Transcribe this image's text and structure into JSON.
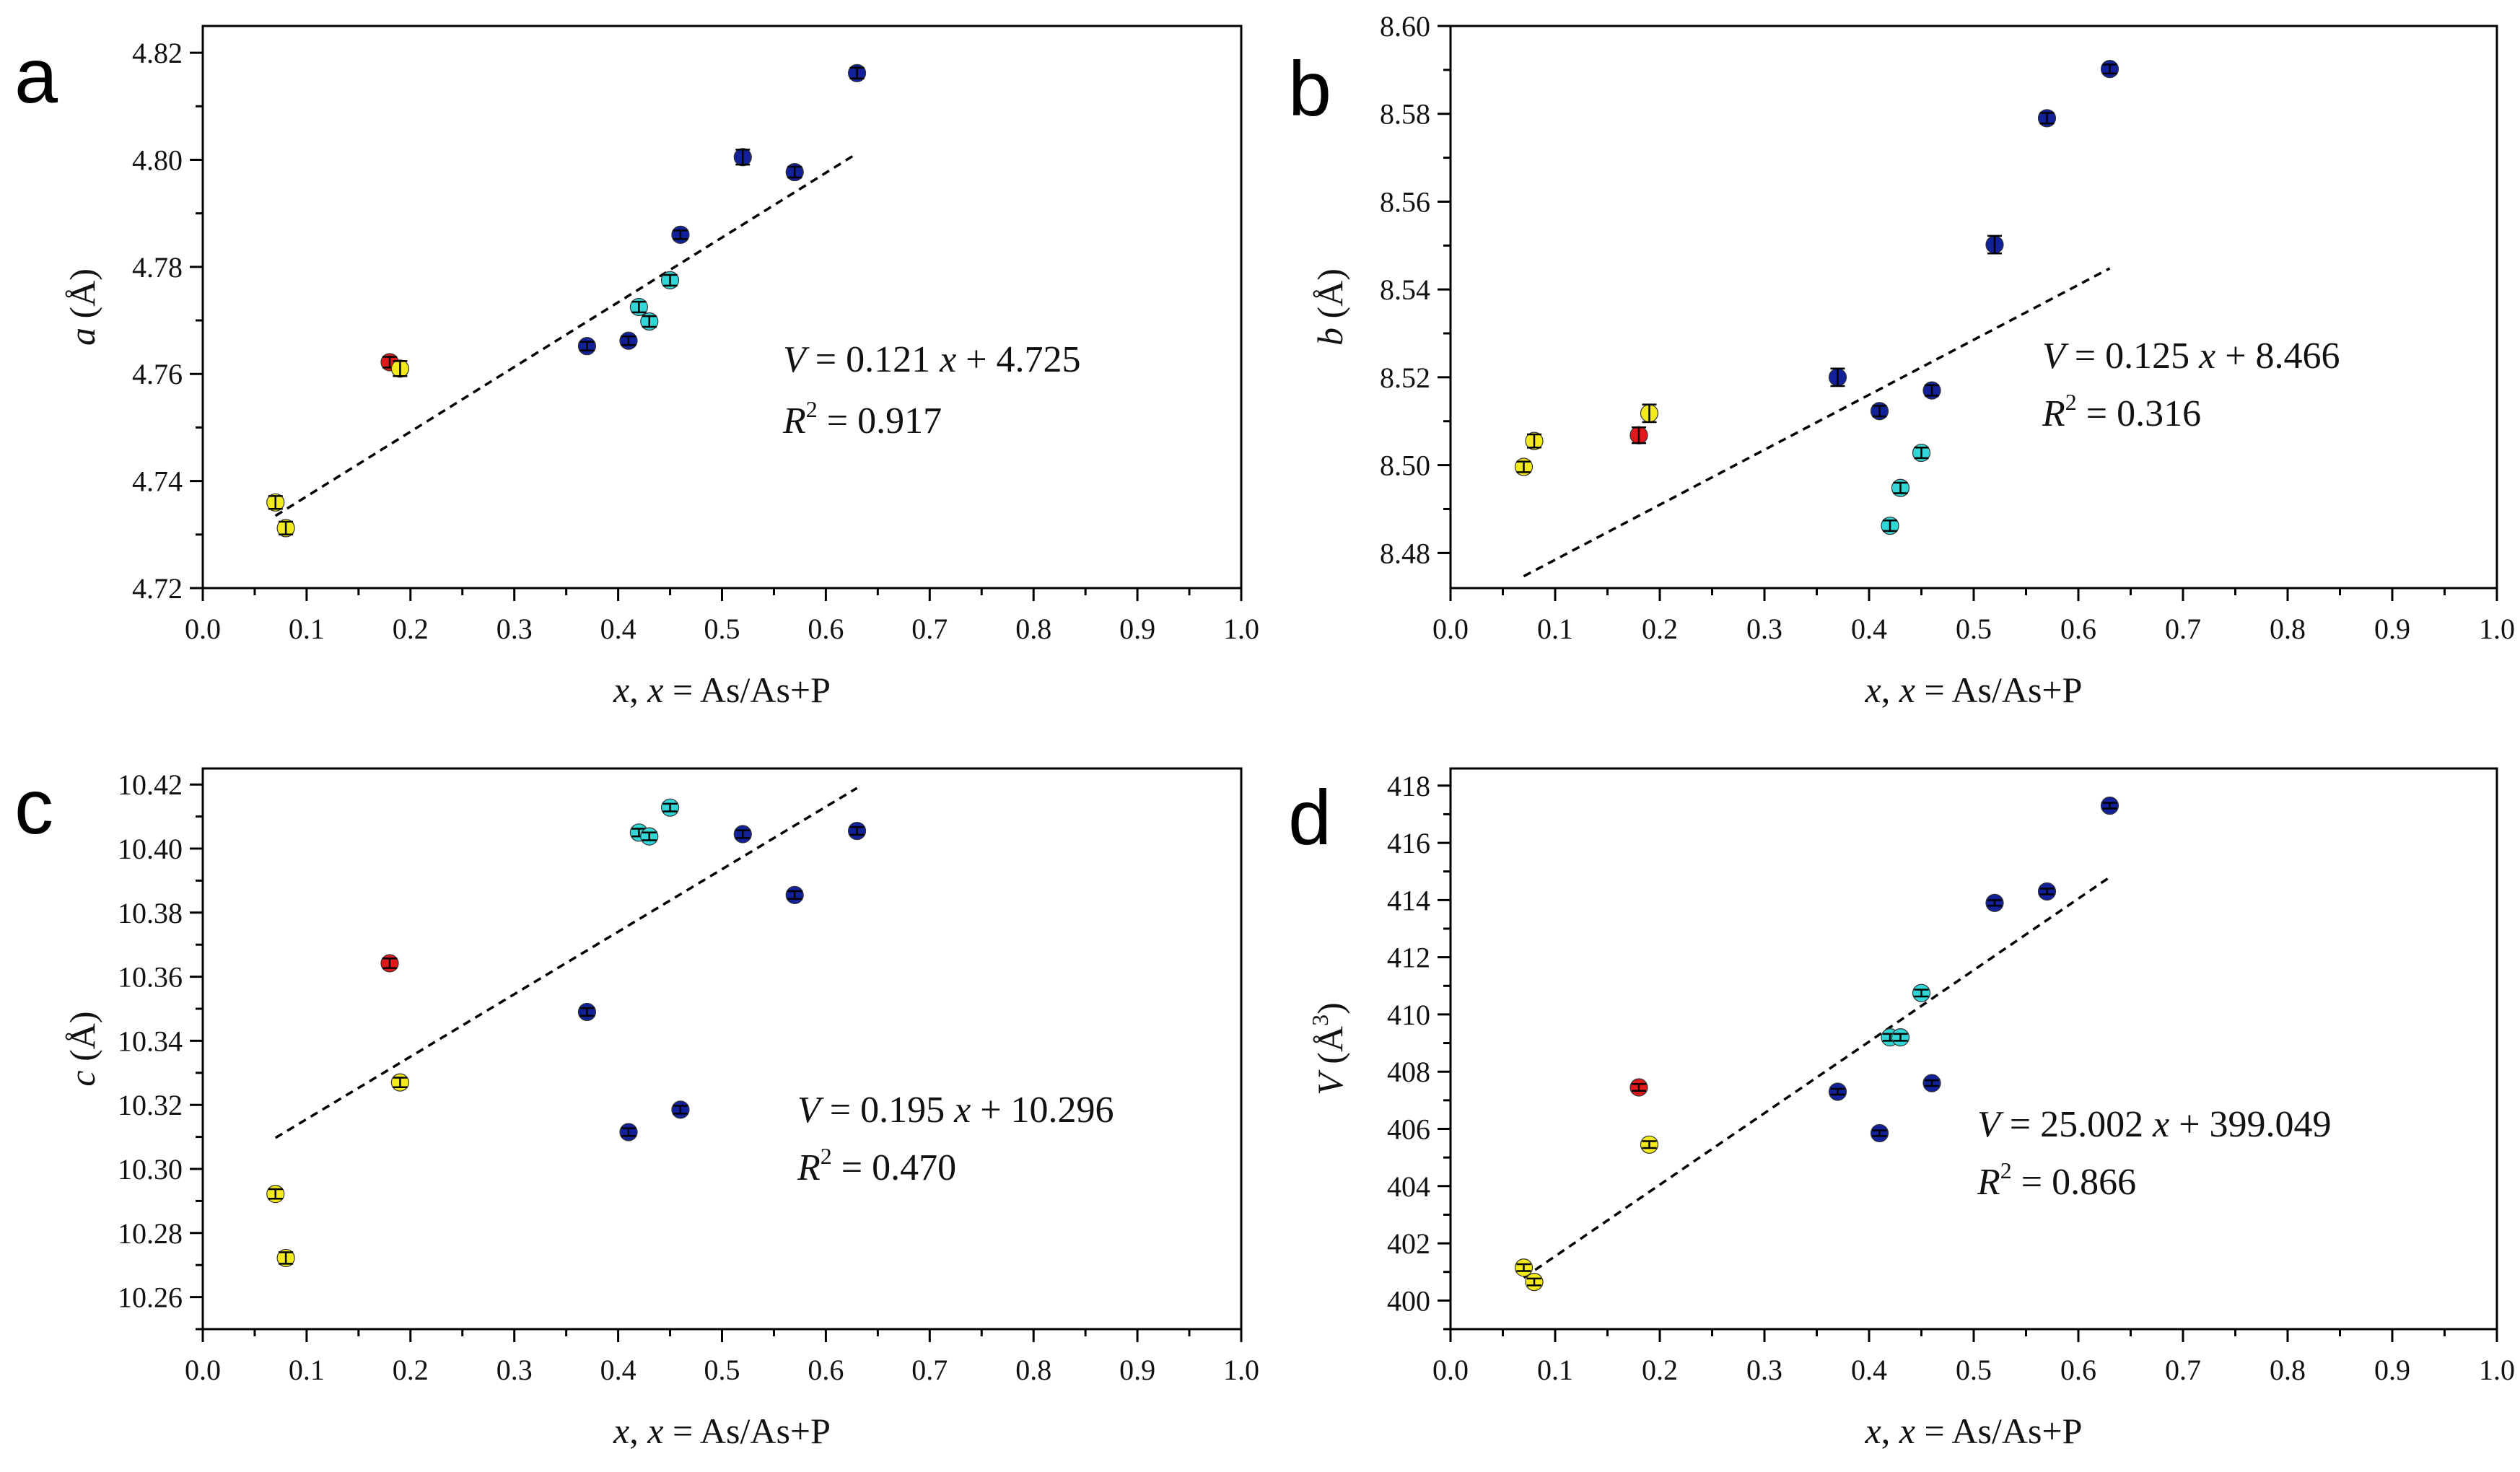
{
  "figure": {
    "colors": {
      "yellow": "#f2ea1c",
      "red": "#e0191c",
      "cyan": "#33d6d6",
      "navy": "#12219a",
      "axis": "#000000",
      "fit": "#000000"
    }
  },
  "chart_data": [
    {
      "panel": "a",
      "type": "scatter",
      "ylabel_var": "a",
      "ylabel_unit": "(Å)",
      "xlabel": "x, x = As/As+P",
      "xlim": [
        0.0,
        1.0
      ],
      "ylim": [
        4.72,
        4.825
      ],
      "xticks": [
        "0.0",
        "0.1",
        "0.2",
        "0.3",
        "0.4",
        "0.5",
        "0.6",
        "0.7",
        "0.8",
        "0.9",
        "1.0"
      ],
      "yticks": [
        "4.72",
        "4.74",
        "4.76",
        "4.78",
        "4.80",
        "4.82"
      ],
      "ytick_values": [
        4.72,
        4.74,
        4.76,
        4.78,
        4.8,
        4.82
      ],
      "fit": {
        "x": [
          0.07,
          0.63
        ],
        "y": [
          4.7335,
          4.8012
        ]
      },
      "eq_line1": "V = 0.121 x + 4.725",
      "eq_line2": "R2 = 0.917",
      "eq_v": "V",
      "eq_rhs1": " = 0.121 ",
      "eq_x": "x",
      "eq_rhs2": " + 4.725",
      "eq_r": "R",
      "eq_sup": "2",
      "eq_rval": " = 0.917",
      "points": [
        {
          "x": 0.07,
          "y": 4.736,
          "err": 0.0012,
          "color": "yellow"
        },
        {
          "x": 0.08,
          "y": 4.7312,
          "err": 0.0012,
          "color": "yellow"
        },
        {
          "x": 0.18,
          "y": 4.7622,
          "err": 0.001,
          "color": "red"
        },
        {
          "x": 0.19,
          "y": 4.761,
          "err": 0.0014,
          "color": "yellow"
        },
        {
          "x": 0.37,
          "y": 4.7652,
          "err": 0.0008,
          "color": "navy"
        },
        {
          "x": 0.41,
          "y": 4.7662,
          "err": 0.0008,
          "color": "navy"
        },
        {
          "x": 0.42,
          "y": 4.7725,
          "err": 0.001,
          "color": "cyan"
        },
        {
          "x": 0.43,
          "y": 4.7698,
          "err": 0.001,
          "color": "cyan"
        },
        {
          "x": 0.45,
          "y": 4.7775,
          "err": 0.001,
          "color": "cyan"
        },
        {
          "x": 0.46,
          "y": 4.786,
          "err": 0.0008,
          "color": "navy"
        },
        {
          "x": 0.52,
          "y": 4.8005,
          "err": 0.0014,
          "color": "navy"
        },
        {
          "x": 0.57,
          "y": 4.7977,
          "err": 0.001,
          "color": "navy"
        },
        {
          "x": 0.63,
          "y": 4.8162,
          "err": 0.001,
          "color": "navy"
        }
      ]
    },
    {
      "panel": "b",
      "type": "scatter",
      "ylabel_var": "b",
      "ylabel_unit": "(Å)",
      "xlabel": "x, x = As/As+P",
      "xlim": [
        0.0,
        1.0
      ],
      "ylim": [
        8.472,
        8.6
      ],
      "xticks": [
        "0.0",
        "0.1",
        "0.2",
        "0.3",
        "0.4",
        "0.5",
        "0.6",
        "0.7",
        "0.8",
        "0.9",
        "1.0"
      ],
      "yticks": [
        "8.48",
        "8.50",
        "8.52",
        "8.54",
        "8.56",
        "8.58",
        "8.60"
      ],
      "ytick_values": [
        8.48,
        8.5,
        8.52,
        8.54,
        8.56,
        8.58,
        8.6
      ],
      "fit": {
        "x": [
          0.07,
          0.63
        ],
        "y": [
          8.4747,
          8.5448
        ]
      },
      "eq_line1": "V = 0.125 x + 8.466",
      "eq_line2": "R2 = 0.316",
      "eq_v": "V",
      "eq_rhs1": " = 0.125 ",
      "eq_x": "x",
      "eq_rhs2": " + 8.466",
      "eq_r": "R",
      "eq_sup": "2",
      "eq_rval": " = 0.316",
      "points": [
        {
          "x": 0.07,
          "y": 8.4996,
          "err": 0.0012,
          "color": "yellow"
        },
        {
          "x": 0.08,
          "y": 8.5055,
          "err": 0.0015,
          "color": "yellow"
        },
        {
          "x": 0.18,
          "y": 8.5068,
          "err": 0.0018,
          "color": "red"
        },
        {
          "x": 0.19,
          "y": 8.5118,
          "err": 0.002,
          "color": "yellow"
        },
        {
          "x": 0.37,
          "y": 8.52,
          "err": 0.002,
          "color": "navy"
        },
        {
          "x": 0.41,
          "y": 8.5123,
          "err": 0.0012,
          "color": "navy"
        },
        {
          "x": 0.42,
          "y": 8.4862,
          "err": 0.0012,
          "color": "cyan"
        },
        {
          "x": 0.43,
          "y": 8.4948,
          "err": 0.0012,
          "color": "cyan"
        },
        {
          "x": 0.45,
          "y": 8.5028,
          "err": 0.0012,
          "color": "cyan"
        },
        {
          "x": 0.46,
          "y": 8.517,
          "err": 0.0012,
          "color": "navy"
        },
        {
          "x": 0.52,
          "y": 8.5502,
          "err": 0.002,
          "color": "navy"
        },
        {
          "x": 0.57,
          "y": 8.579,
          "err": 0.0012,
          "color": "navy"
        },
        {
          "x": 0.63,
          "y": 8.5902,
          "err": 0.001,
          "color": "navy"
        }
      ]
    },
    {
      "panel": "c",
      "type": "scatter",
      "ylabel_var": "c",
      "ylabel_unit": "(Å)",
      "xlabel": "x, x = As/As+P",
      "xlim": [
        0.0,
        1.0
      ],
      "ylim": [
        10.25,
        10.425
      ],
      "xticks": [
        "0.0",
        "0.1",
        "0.2",
        "0.3",
        "0.4",
        "0.5",
        "0.6",
        "0.7",
        "0.8",
        "0.9",
        "1.0"
      ],
      "yticks": [
        "10.26",
        "10.28",
        "10.30",
        "10.32",
        "10.34",
        "10.36",
        "10.38",
        "10.40",
        "10.42"
      ],
      "ytick_values": [
        10.26,
        10.28,
        10.3,
        10.32,
        10.34,
        10.36,
        10.38,
        10.4,
        10.42
      ],
      "fit": {
        "x": [
          0.07,
          0.63
        ],
        "y": [
          10.3097,
          10.4189
        ]
      },
      "eq_line1": "V = 0.195 x + 10.296",
      "eq_line2": "R2 = 0.470",
      "eq_v": "V",
      "eq_rhs1": " = 0.195 ",
      "eq_x": "x",
      "eq_rhs2": " + 10.296",
      "eq_r": "R",
      "eq_sup": "2",
      "eq_rval": " = 0.470",
      "points": [
        {
          "x": 0.07,
          "y": 10.2922,
          "err": 0.0015,
          "color": "yellow"
        },
        {
          "x": 0.08,
          "y": 10.2722,
          "err": 0.0018,
          "color": "yellow"
        },
        {
          "x": 0.18,
          "y": 10.3642,
          "err": 0.0015,
          "color": "red"
        },
        {
          "x": 0.19,
          "y": 10.327,
          "err": 0.0015,
          "color": "yellow"
        },
        {
          "x": 0.37,
          "y": 10.349,
          "err": 0.0012,
          "color": "navy"
        },
        {
          "x": 0.41,
          "y": 10.3115,
          "err": 0.0012,
          "color": "navy"
        },
        {
          "x": 0.42,
          "y": 10.405,
          "err": 0.0012,
          "color": "cyan"
        },
        {
          "x": 0.43,
          "y": 10.4038,
          "err": 0.0012,
          "color": "cyan"
        },
        {
          "x": 0.45,
          "y": 10.4128,
          "err": 0.0012,
          "color": "cyan"
        },
        {
          "x": 0.46,
          "y": 10.3185,
          "err": 0.0012,
          "color": "navy"
        },
        {
          "x": 0.52,
          "y": 10.4045,
          "err": 0.0012,
          "color": "navy"
        },
        {
          "x": 0.57,
          "y": 10.3855,
          "err": 0.0012,
          "color": "navy"
        },
        {
          "x": 0.63,
          "y": 10.4055,
          "err": 0.0012,
          "color": "navy"
        }
      ]
    },
    {
      "panel": "d",
      "type": "scatter",
      "ylabel_var": "V",
      "ylabel_unit": "(Å3)",
      "xlabel": "x, x = As/As+P",
      "xlim": [
        0.0,
        1.0
      ],
      "ylim": [
        399.0,
        418.6
      ],
      "xticks": [
        "0.0",
        "0.1",
        "0.2",
        "0.3",
        "0.4",
        "0.5",
        "0.6",
        "0.7",
        "0.8",
        "0.9",
        "1.0"
      ],
      "yticks": [
        "400",
        "402",
        "404",
        "406",
        "408",
        "410",
        "412",
        "414",
        "416",
        "418"
      ],
      "ytick_values": [
        400,
        402,
        404,
        406,
        408,
        410,
        412,
        414,
        416,
        418
      ],
      "fit": {
        "x": [
          0.07,
          0.63
        ],
        "y": [
          400.799,
          414.8
        ]
      },
      "eq_line1": "V = 25.002 x + 399.049",
      "eq_line2": "R2 = 0.866",
      "eq_v": "V",
      "eq_rhs1": " = 25.002 ",
      "eq_x": "x",
      "eq_rhs2": " + 399.049",
      "eq_r": "R",
      "eq_sup": "2",
      "eq_rval": " = 0.866",
      "points": [
        {
          "x": 0.07,
          "y": 401.15,
          "err": 0.12,
          "color": "yellow"
        },
        {
          "x": 0.08,
          "y": 400.65,
          "err": 0.12,
          "color": "yellow"
        },
        {
          "x": 0.18,
          "y": 407.45,
          "err": 0.12,
          "color": "red"
        },
        {
          "x": 0.19,
          "y": 405.45,
          "err": 0.12,
          "color": "yellow"
        },
        {
          "x": 0.37,
          "y": 407.3,
          "err": 0.1,
          "color": "navy"
        },
        {
          "x": 0.41,
          "y": 405.85,
          "err": 0.1,
          "color": "navy"
        },
        {
          "x": 0.42,
          "y": 409.2,
          "err": 0.12,
          "color": "cyan"
        },
        {
          "x": 0.43,
          "y": 409.2,
          "err": 0.12,
          "color": "cyan"
        },
        {
          "x": 0.45,
          "y": 410.75,
          "err": 0.12,
          "color": "cyan"
        },
        {
          "x": 0.46,
          "y": 407.6,
          "err": 0.1,
          "color": "navy"
        },
        {
          "x": 0.52,
          "y": 413.9,
          "err": 0.1,
          "color": "navy"
        },
        {
          "x": 0.57,
          "y": 414.3,
          "err": 0.1,
          "color": "navy"
        },
        {
          "x": 0.63,
          "y": 417.3,
          "err": 0.1,
          "color": "navy"
        }
      ]
    }
  ]
}
